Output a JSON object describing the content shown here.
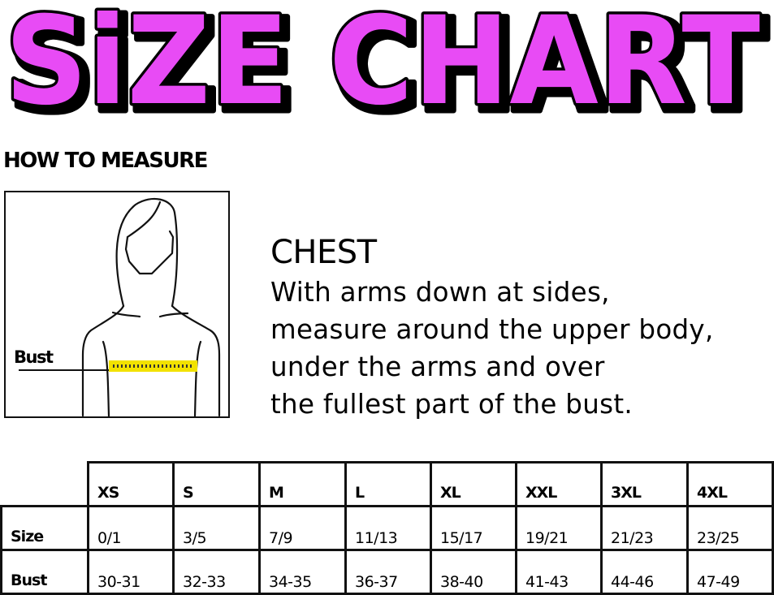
{
  "title": "SiZE CHART",
  "title_colors": {
    "fill": "#e84cf5",
    "outline": "#000000"
  },
  "how_to_measure": "HOW TO MEASURE",
  "figure": {
    "label": "Bust",
    "tape_color": "#f2e200"
  },
  "chest": {
    "title": "CHEST",
    "lines": [
      "With arms down at sides,",
      "measure around the upper body,",
      "under the arms and over",
      "the fullest part of the bust."
    ]
  },
  "table": {
    "headers": [
      "XS",
      "S",
      "M",
      "L",
      "XL",
      "XXL",
      "3XL",
      "4XL"
    ],
    "rows": [
      {
        "label": "Size",
        "values": [
          "0/1",
          "3/5",
          "7/9",
          "11/13",
          "15/17",
          "19/21",
          "21/23",
          "23/25"
        ]
      },
      {
        "label": "Bust",
        "values": [
          "30-31",
          "32-33",
          "34-35",
          "36-37",
          "38-40",
          "41-43",
          "44-46",
          "47-49"
        ]
      }
    ]
  }
}
